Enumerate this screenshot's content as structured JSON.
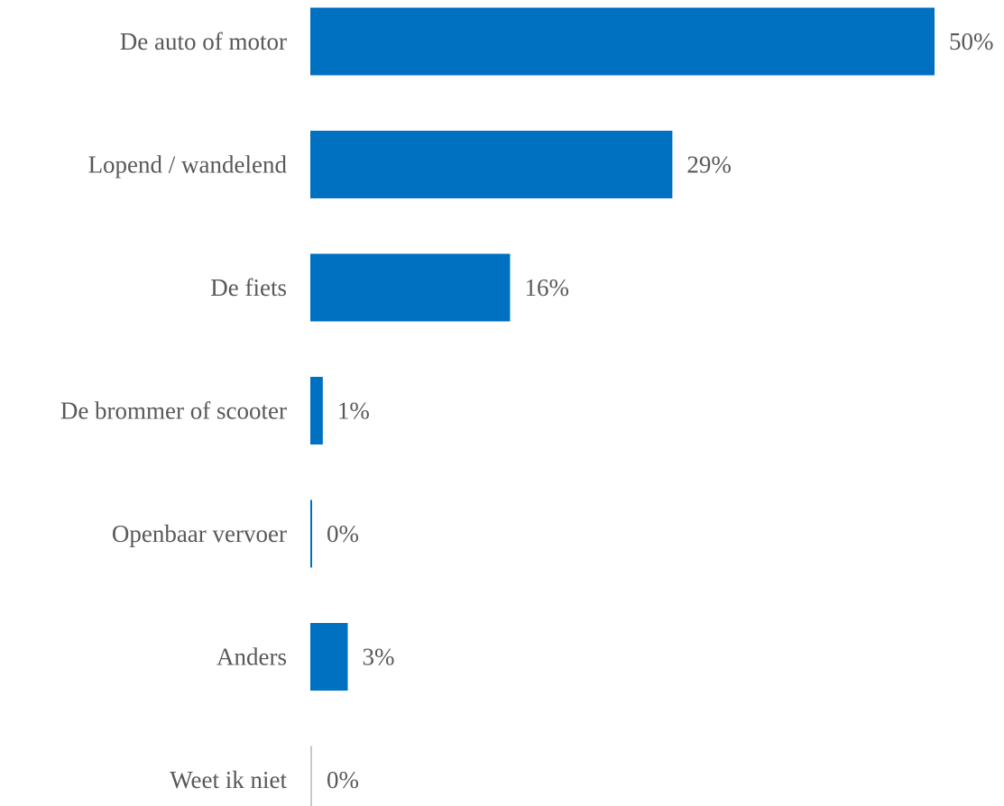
{
  "chart_data": {
    "type": "bar",
    "orientation": "horizontal",
    "categories": [
      "De auto of motor",
      "Lopend / wandelend",
      "De fiets",
      "De brommer of scooter",
      "Openbaar vervoer",
      "Anders",
      "Weet ik niet"
    ],
    "values": [
      50,
      29,
      16,
      1,
      0,
      3,
      0
    ],
    "value_labels": [
      "50%",
      "29%",
      "16%",
      "1%",
      "0%",
      "3%",
      "0%"
    ],
    "unit": "%",
    "xlim": [
      0,
      50
    ],
    "grid": false,
    "legend": "none",
    "colors": {
      "bar": "#0070C0",
      "bar_muted": "#C8C8C8",
      "text": "#595959"
    }
  }
}
